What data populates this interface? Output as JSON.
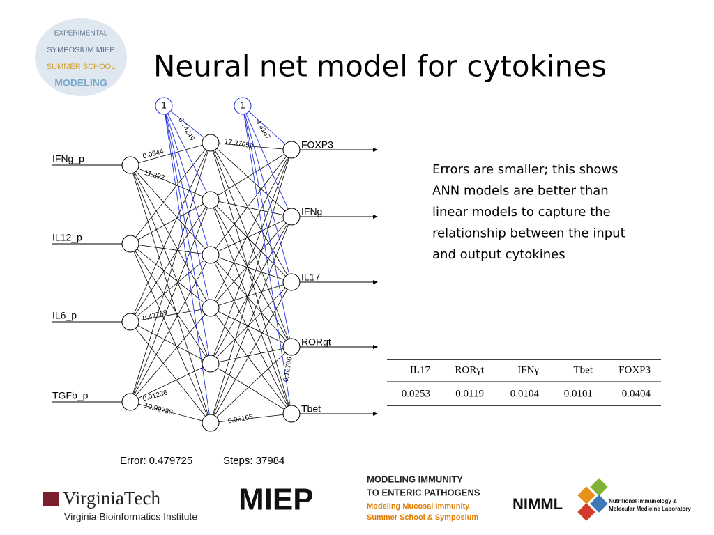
{
  "header": {
    "title": "Neural net model for cytokines",
    "badge_words": [
      "EXPERIMENTAL",
      "SYMPOSIUM MIEP",
      "SUMMER SCHOOL",
      "MODELING"
    ]
  },
  "description": [
    "Errors are smaller; this shows",
    "ANN models are better than",
    "linear models to capture the",
    "relationship between the input",
    "and output cytokines"
  ],
  "network": {
    "bias": [
      "1",
      "1"
    ],
    "inputs": [
      "IFNg_p",
      "IL12_p",
      "IL6_p",
      "TGFb_p"
    ],
    "outputs": [
      "FOXP3",
      "IFNg",
      "IL17",
      "RORgt",
      "Tbet"
    ],
    "weights": [
      "0.74249",
      "-4.3167",
      "17.37652",
      "0.0344",
      "11.392",
      "0.47769",
      "0.01236",
      "10.99738",
      "0.06165",
      "0.16796"
    ],
    "error": "Error: 0.479725",
    "steps": "Steps: 37984"
  },
  "table": {
    "header": [
      "IL17",
      "RORγt",
      "IFNγ",
      "Tbet",
      "FOXP3"
    ],
    "rows": [
      [
        "0.0253",
        "0.0119",
        "0.0104",
        "0.0101",
        "0.0404"
      ]
    ]
  },
  "footer": {
    "vt_name": "VirginiaTech",
    "vt_sub": "Virginia Bioinformatics Institute",
    "miep": "MIEP",
    "miep_lines": [
      "MODELING IMMUNITY",
      "TO ENTERIC PATHOGENS",
      "Modeling Mucosal Immunity",
      "Summer School & Symposium"
    ],
    "nimml": "NIMML",
    "nimml_lines": [
      "Nutritional Immunology &",
      "Molecular Medicine Laboratory"
    ]
  }
}
